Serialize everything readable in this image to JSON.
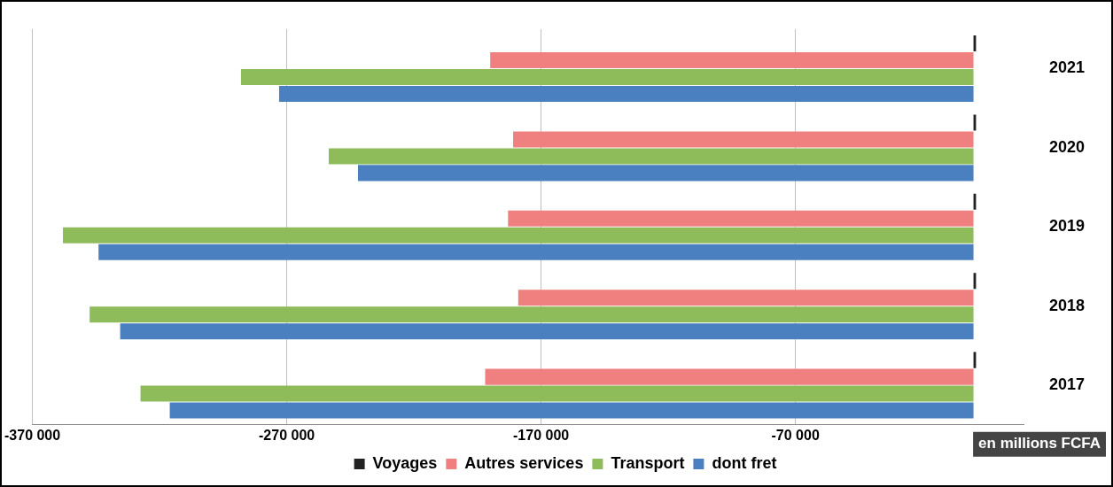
{
  "chart_data": {
    "type": "bar",
    "orientation": "horizontal",
    "categories": [
      "2021",
      "2020",
      "2019",
      "2018",
      "2017"
    ],
    "series": [
      {
        "name": "Voyages",
        "color": "#222222",
        "values": [
          1000,
          1000,
          1000,
          1000,
          1000
        ]
      },
      {
        "name": "Autres services",
        "color": "#f08080",
        "values": [
          -190000,
          -181000,
          -183000,
          -179000,
          -192000
        ]
      },
      {
        "name": "Transport",
        "color": "#8fbc5a",
        "values": [
          -288000,
          -253500,
          -358000,
          -347500,
          -327500
        ]
      },
      {
        "name": "dont fret",
        "color": "#4a7fc0",
        "values": [
          -273000,
          -242000,
          -344000,
          -335500,
          -316000
        ]
      }
    ],
    "xlim": [
      -370000,
      20000
    ],
    "xticks": [
      {
        "value": -370000,
        "label": "-370 000"
      },
      {
        "value": -270000,
        "label": "-270 000"
      },
      {
        "value": -170000,
        "label": "-170 000"
      },
      {
        "value": -70000,
        "label": "-70 000"
      }
    ],
    "grid": "x",
    "legend": "bottom",
    "annotations": [
      "en millions FCFA"
    ]
  }
}
